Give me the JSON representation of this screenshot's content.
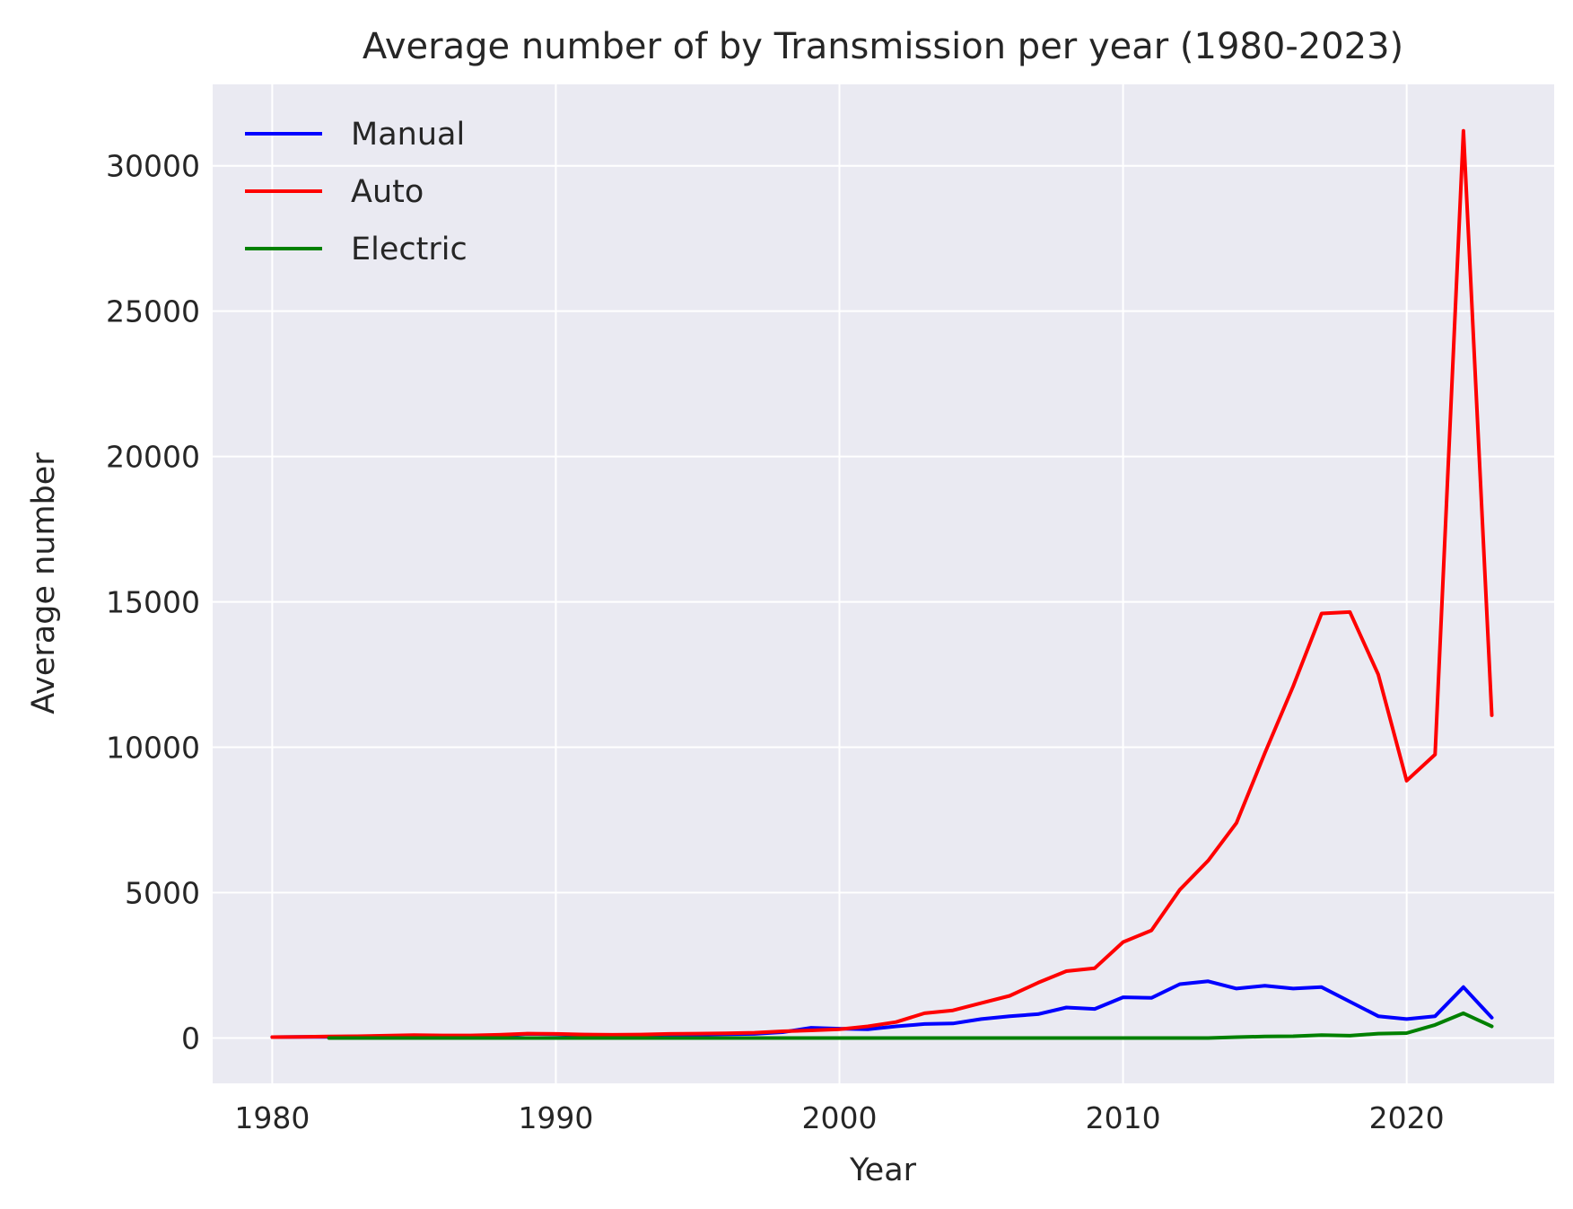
{
  "chart_data": {
    "type": "line",
    "title": "Average number of by Transmission per year (1980-2023)",
    "xlabel": "Year",
    "ylabel": "Average number",
    "xlim": [
      1977.9,
      2025.2
    ],
    "ylim": [
      -1560,
      32800
    ],
    "xticks": [
      1980,
      1990,
      2000,
      2010,
      2020
    ],
    "yticks": [
      0,
      5000,
      10000,
      15000,
      20000,
      25000,
      30000
    ],
    "grid": true,
    "legend_position": "top-left",
    "background": "#eaeaf2",
    "series": [
      {
        "name": "Manual",
        "color": "#0000ff",
        "x": [
          1980,
          1981,
          1982,
          1983,
          1984,
          1985,
          1986,
          1987,
          1988,
          1989,
          1990,
          1991,
          1992,
          1993,
          1994,
          1995,
          1996,
          1997,
          1998,
          1999,
          2000,
          2001,
          2002,
          2003,
          2004,
          2005,
          2006,
          2007,
          2008,
          2009,
          2010,
          2011,
          2012,
          2013,
          2014,
          2015,
          2016,
          2017,
          2018,
          2019,
          2020,
          2021,
          2022,
          2023
        ],
        "y": [
          30,
          35,
          40,
          50,
          70,
          80,
          75,
          70,
          90,
          140,
          130,
          110,
          100,
          100,
          110,
          120,
          130,
          140,
          200,
          350,
          320,
          300,
          400,
          480,
          500,
          650,
          750,
          820,
          1050,
          1000,
          1400,
          1380,
          1850,
          1950,
          1700,
          1800,
          1700,
          1750,
          1250,
          750,
          650,
          750,
          1750,
          700
        ]
      },
      {
        "name": "Auto",
        "color": "#ff0000",
        "x": [
          1980,
          1981,
          1982,
          1983,
          1984,
          1985,
          1986,
          1987,
          1988,
          1989,
          1990,
          1991,
          1992,
          1993,
          1994,
          1995,
          1996,
          1997,
          1998,
          1999,
          2000,
          2001,
          2002,
          2003,
          2004,
          2005,
          2006,
          2007,
          2008,
          2009,
          2010,
          2011,
          2012,
          2013,
          2014,
          2015,
          2016,
          2017,
          2018,
          2019,
          2020,
          2021,
          2022,
          2023
        ],
        "y": [
          30,
          35,
          50,
          60,
          80,
          100,
          90,
          90,
          110,
          150,
          140,
          120,
          110,
          120,
          140,
          150,
          160,
          180,
          230,
          260,
          300,
          400,
          550,
          850,
          950,
          1200,
          1450,
          1900,
          2300,
          2400,
          3300,
          3700,
          5100,
          6100,
          7400,
          9800,
          12100,
          14600,
          14650,
          12500,
          8850,
          9750,
          31200,
          11100
        ]
      },
      {
        "name": "Electric",
        "color": "#008000",
        "x": [
          1982,
          1983,
          1984,
          1985,
          1986,
          1987,
          1988,
          1989,
          1990,
          1991,
          1992,
          1993,
          1994,
          1995,
          1996,
          1997,
          1998,
          1999,
          2000,
          2001,
          2002,
          2003,
          2004,
          2005,
          2006,
          2007,
          2008,
          2009,
          2010,
          2011,
          2012,
          2013,
          2014,
          2015,
          2016,
          2017,
          2018,
          2019,
          2020,
          2021,
          2022,
          2023
        ],
        "y": [
          0,
          0,
          0,
          0,
          0,
          0,
          0,
          0,
          0,
          0,
          0,
          0,
          0,
          0,
          0,
          0,
          0,
          0,
          0,
          0,
          0,
          0,
          0,
          0,
          0,
          0,
          0,
          0,
          0,
          0,
          0,
          0,
          30,
          50,
          60,
          100,
          80,
          150,
          170,
          450,
          850,
          400
        ]
      }
    ]
  }
}
